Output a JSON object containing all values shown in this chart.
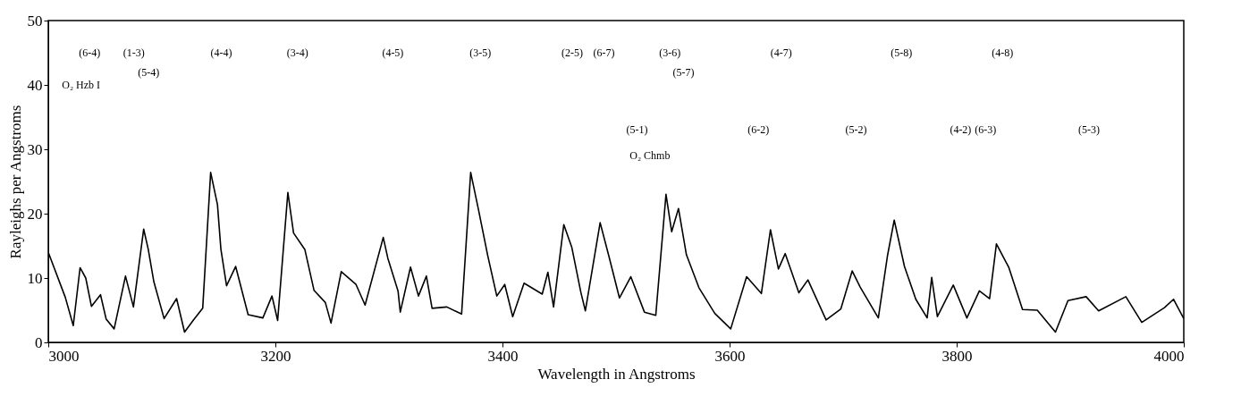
{
  "chart_data": {
    "type": "line",
    "xlabel": "Wavelength in Angstroms",
    "ylabel": "Rayleighs per Angstroms",
    "xlim": [
      3000,
      4000
    ],
    "xticks": [
      3000,
      3200,
      3400,
      3600,
      3800,
      4000
    ],
    "ylim": [
      0,
      50
    ],
    "yticks": [
      0,
      10,
      20,
      30,
      40,
      50
    ],
    "x": [
      3000,
      3015,
      3022,
      3028,
      3033,
      3038,
      3046,
      3051,
      3058,
      3068,
      3075,
      3084,
      3088,
      3093,
      3102,
      3113,
      3120,
      3128,
      3136,
      3143,
      3149,
      3152,
      3157,
      3165,
      3176,
      3189,
      3197,
      3202,
      3211,
      3216,
      3226,
      3234,
      3244,
      3249,
      3258,
      3271,
      3279,
      3295,
      3299,
      3308,
      3310,
      3319,
      3326,
      3333,
      3338,
      3351,
      3364,
      3372,
      3379,
      3387,
      3395,
      3402,
      3409,
      3419,
      3435,
      3440,
      3445,
      3454,
      3461,
      3469,
      3473,
      3486,
      3494,
      3503,
      3513,
      3525,
      3535,
      3544,
      3549,
      3555,
      3562,
      3573,
      3587,
      3601,
      3615,
      3628,
      3636,
      3643,
      3649,
      3661,
      3669,
      3685,
      3698,
      3708,
      3715,
      3731,
      3739,
      3745,
      3754,
      3764,
      3774,
      3778,
      3783,
      3797,
      3809,
      3820,
      3829,
      3835,
      3846,
      3858,
      3871,
      3887,
      3898,
      3914,
      3925,
      3949,
      3963,
      3983,
      3991,
      4000
    ],
    "series": [
      {
        "color": "#000000",
        "values": [
          14,
          7.0,
          2.6,
          11.6,
          10.0,
          5.6,
          7.4,
          3.6,
          2.1,
          10.3,
          5.5,
          17.6,
          14.5,
          9.4,
          3.7,
          6.8,
          1.6,
          3.5,
          5.3,
          26.4,
          21.4,
          14.5,
          8.8,
          11.8,
          4.3,
          3.8,
          7.2,
          3.4,
          23.3,
          17.0,
          14.4,
          8.1,
          6.2,
          3.0,
          11.0,
          9.0,
          5.8,
          16.3,
          13.1,
          8.0,
          4.7,
          11.7,
          7.2,
          10.3,
          5.3,
          5.5,
          4.4,
          26.4,
          20.5,
          13.5,
          7.2,
          9.0,
          4.0,
          9.2,
          7.5,
          10.9,
          5.5,
          18.3,
          14.8,
          7.8,
          4.9,
          18.6,
          13.2,
          6.9,
          10.2,
          4.7,
          4.2,
          23.0,
          17.2,
          20.8,
          13.6,
          8.5,
          4.5,
          2.1,
          10.2,
          7.6,
          17.5,
          11.4,
          13.8,
          7.7,
          9.7,
          3.5,
          5.2,
          11.1,
          8.6,
          3.8,
          13.4,
          19.0,
          11.8,
          6.7,
          3.8,
          10.1,
          4.0,
          8.9,
          3.8,
          8.0,
          6.8,
          15.3,
          11.6,
          5.1,
          5.0,
          1.6,
          6.5,
          7.1,
          4.9,
          7.1,
          3.1,
          5.4,
          6.7,
          3.7
        ]
      }
    ],
    "line_style": "solid",
    "grid": false,
    "annotations": [
      "O₂ Hzb I",
      "O₂ Chmb",
      "(6-4)",
      "(1-3)",
      "(5-4)",
      "(4-4)",
      "(3-4)",
      "(4-5)",
      "(3-5)",
      "(2-5)",
      "(6-7)",
      "(3-6)",
      "(5-7)",
      "(4-7)",
      "(5-8)",
      "(4-8)",
      "(5-1)",
      "(6-2)",
      "(5-2)",
      "(4-2)",
      "(6-3)",
      "(5-3)"
    ]
  }
}
